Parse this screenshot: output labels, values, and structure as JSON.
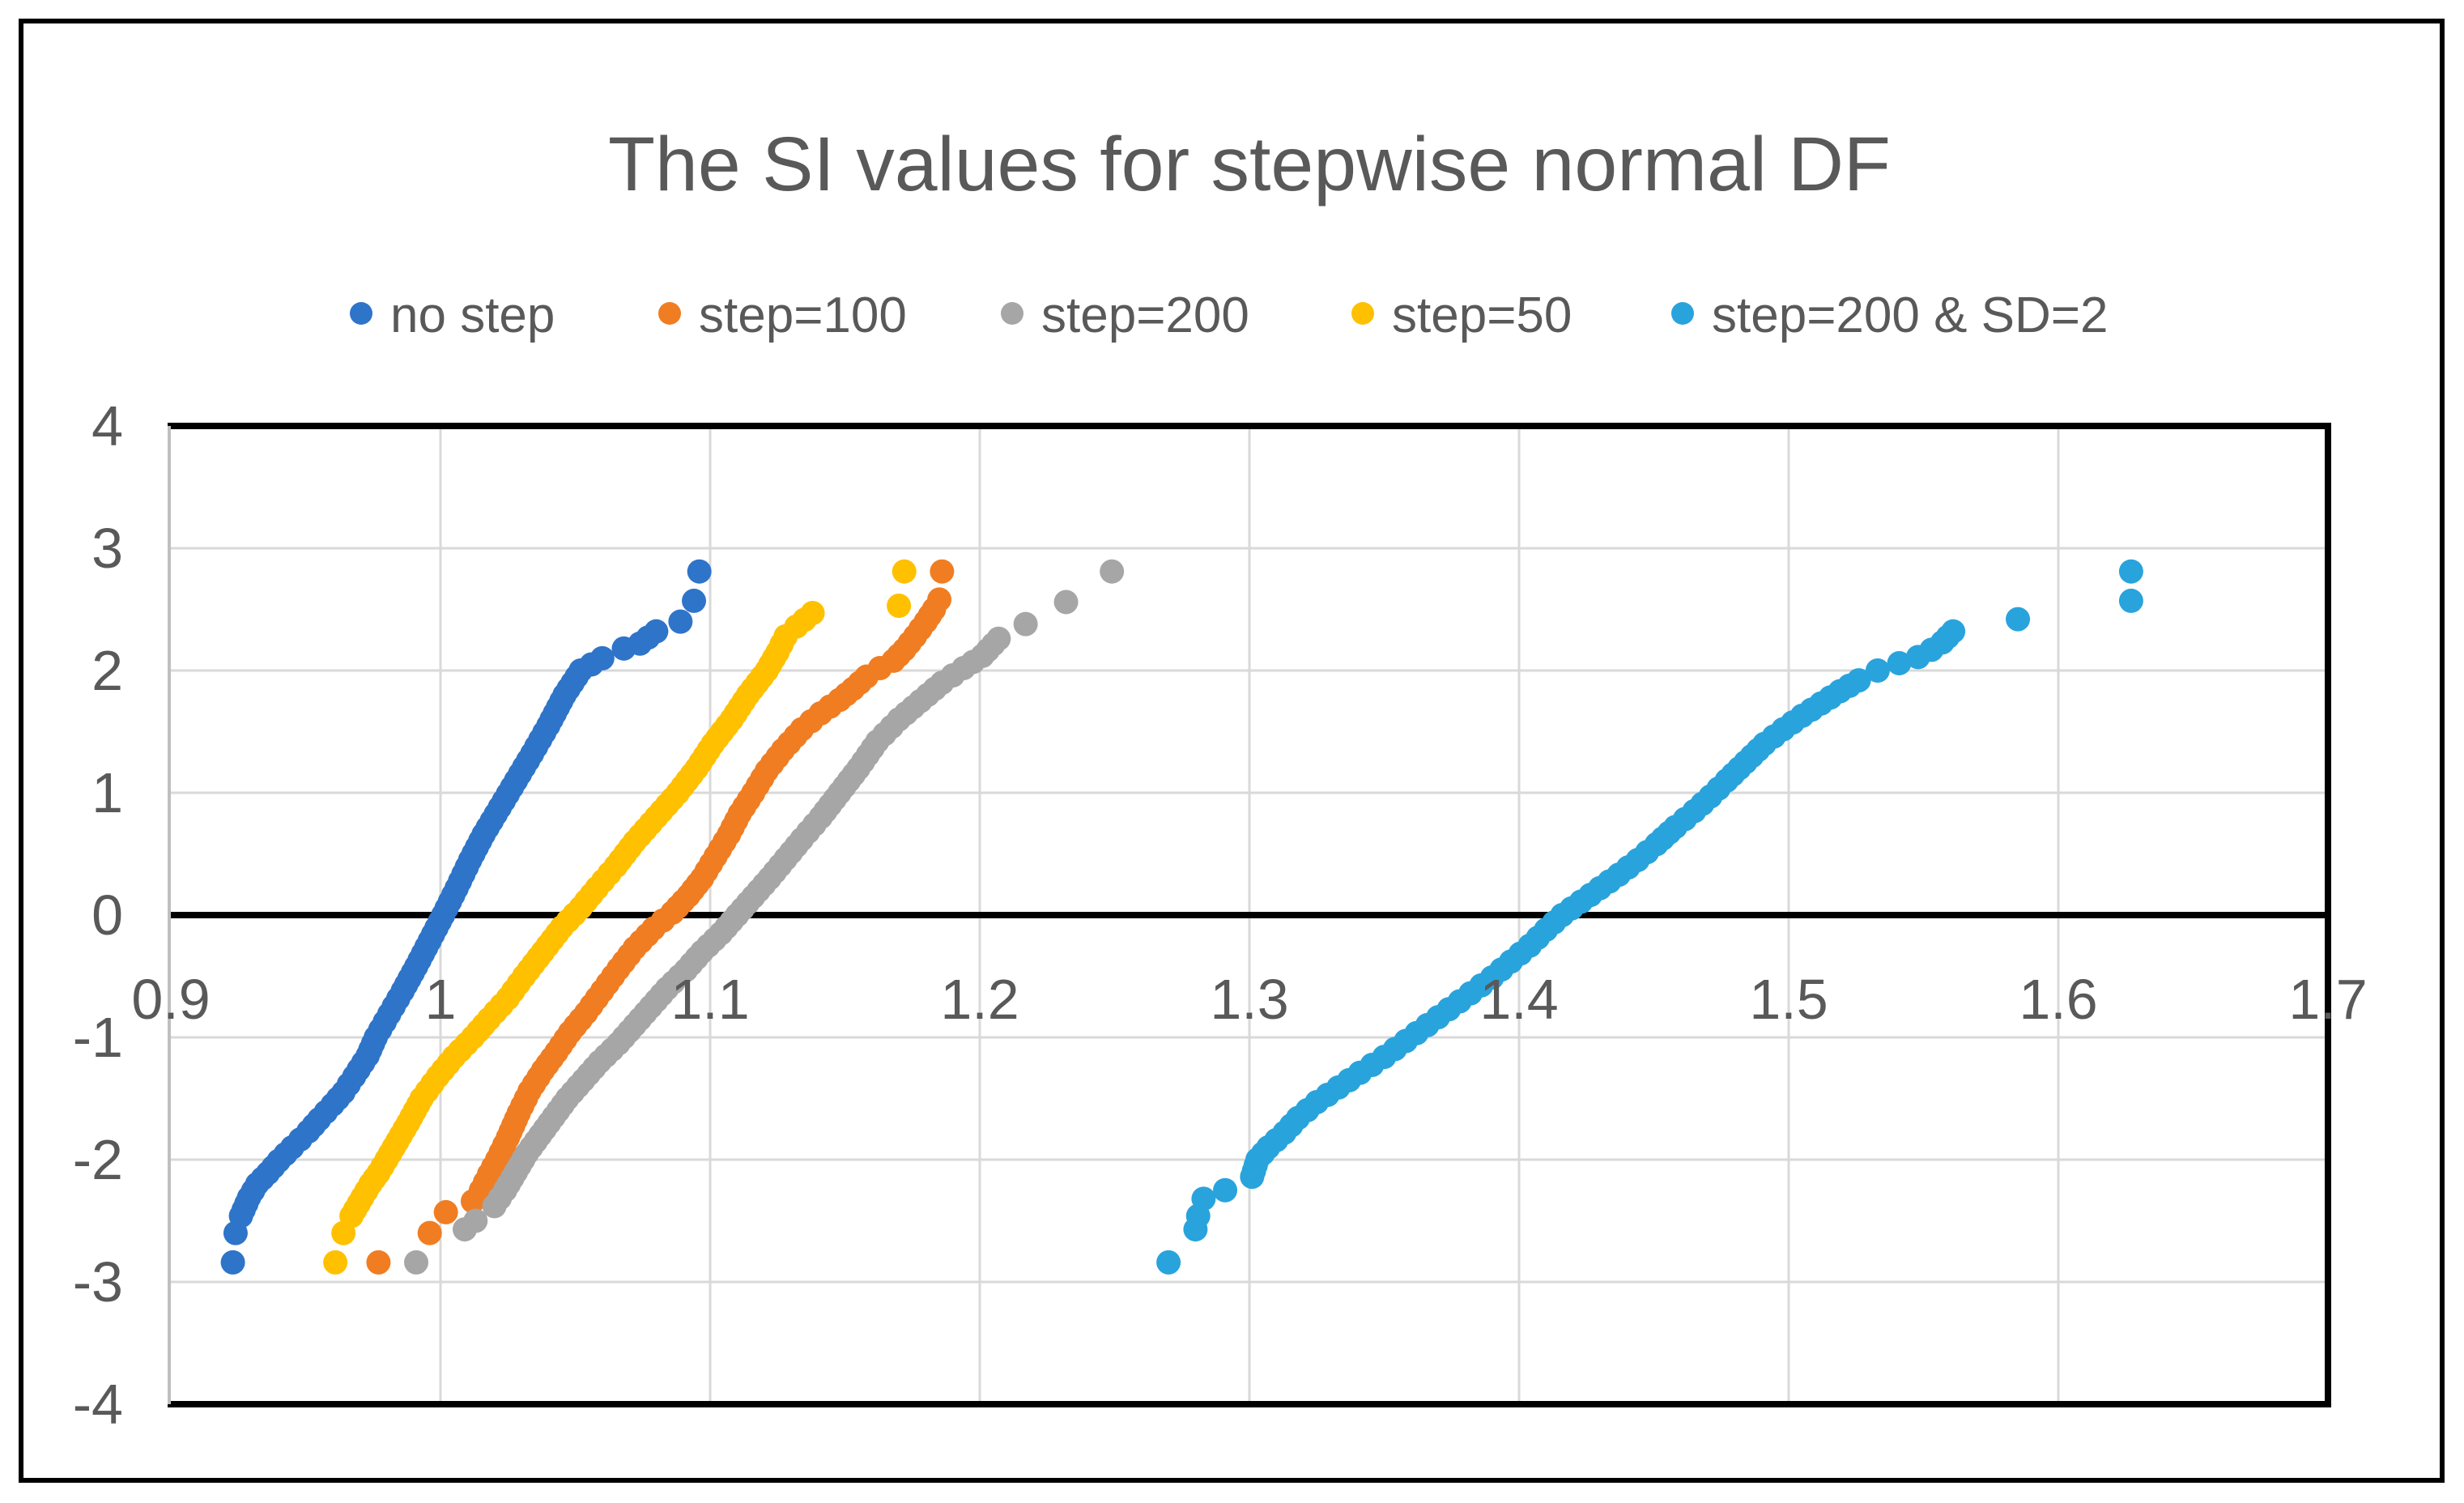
{
  "title": "The SI values for stepwise normal DF",
  "colors": {
    "text": "#595959",
    "grid": "#D9D9D9",
    "axis": "#000000",
    "left_axis_line": "#BFBFBF",
    "outer_border": "#000000",
    "background": "#FFFFFF"
  },
  "legend": {
    "items": [
      {
        "label": "no step",
        "color": "#2E74C9"
      },
      {
        "label": "step=100",
        "color": "#F07D22"
      },
      {
        "label": "step=200",
        "color": "#A6A6A6"
      },
      {
        "label": "step=50",
        "color": "#FFC000"
      },
      {
        "label": "step=200 & SD=2",
        "color": "#29A3DC"
      }
    ]
  },
  "chart_data": {
    "type": "scatter",
    "title": "The SI values for stepwise normal DF",
    "xlabel": "",
    "ylabel": "",
    "xlim": [
      0.9,
      1.7
    ],
    "ylim": [
      -4,
      4
    ],
    "grid": true,
    "legend_position": "top",
    "x_ticks": [
      "0.9",
      "1",
      "1.1",
      "1.2",
      "1.3",
      "1.4",
      "1.5",
      "1.6",
      "1.7"
    ],
    "x_tick_values": [
      0.9,
      1.0,
      1.1,
      1.2,
      1.3,
      1.4,
      1.5,
      1.6,
      1.7
    ],
    "y_ticks": [
      "4",
      "3",
      "2",
      "1",
      "0",
      "-1",
      "-2",
      "-3",
      "-4"
    ],
    "y_tick_values": [
      4,
      3,
      2,
      1,
      0,
      -1,
      -2,
      -3,
      -4
    ],
    "series": [
      {
        "name": "no step",
        "color": "#2E74C9",
        "outliers_low": [
          [
            0.923,
            -2.84
          ],
          [
            0.924,
            -2.6
          ]
        ],
        "band": [
          [
            0.926,
            -2.46
          ],
          [
            0.929,
            -2.31
          ],
          [
            0.932,
            -2.2
          ],
          [
            0.936,
            -2.11
          ],
          [
            0.94,
            -2.01
          ],
          [
            0.945,
            -1.9
          ],
          [
            0.951,
            -1.77
          ],
          [
            0.955,
            -1.67
          ],
          [
            0.96,
            -1.55
          ],
          [
            0.964,
            -1.45
          ],
          [
            0.968,
            -1.32
          ],
          [
            0.973,
            -1.15
          ],
          [
            0.976,
            -1.0
          ],
          [
            0.981,
            -0.81
          ],
          [
            0.986,
            -0.62
          ],
          [
            0.991,
            -0.42
          ],
          [
            0.996,
            -0.21
          ],
          [
            1.001,
            0.0
          ],
          [
            1.006,
            0.22
          ],
          [
            1.011,
            0.45
          ],
          [
            1.016,
            0.66
          ],
          [
            1.022,
            0.88
          ],
          [
            1.028,
            1.1
          ],
          [
            1.034,
            1.32
          ],
          [
            1.04,
            1.55
          ],
          [
            1.046,
            1.8
          ],
          [
            1.052,
            2.0
          ],
          [
            1.06,
            2.1
          ],
          [
            1.068,
            2.18
          ],
          [
            1.074,
            2.22
          ],
          [
            1.08,
            2.32
          ],
          [
            1.089,
            2.4
          ]
        ],
        "outliers_high": [
          [
            1.094,
            2.57
          ],
          [
            1.096,
            2.81
          ]
        ]
      },
      {
        "name": "step=100",
        "color": "#F07D22",
        "outliers_low": [
          [
            0.977,
            -2.84
          ],
          [
            0.996,
            -2.6
          ],
          [
            1.002,
            -2.43
          ],
          [
            1.012,
            -2.34
          ]
        ],
        "band": [
          [
            1.015,
            -2.25
          ],
          [
            1.018,
            -2.12
          ],
          [
            1.021,
            -2.0
          ],
          [
            1.025,
            -1.82
          ],
          [
            1.029,
            -1.62
          ],
          [
            1.033,
            -1.44
          ],
          [
            1.038,
            -1.27
          ],
          [
            1.043,
            -1.12
          ],
          [
            1.048,
            -0.96
          ],
          [
            1.054,
            -0.8
          ],
          [
            1.06,
            -0.62
          ],
          [
            1.066,
            -0.44
          ],
          [
            1.072,
            -0.27
          ],
          [
            1.079,
            -0.11
          ],
          [
            1.086,
            0.02
          ],
          [
            1.092,
            0.16
          ],
          [
            1.097,
            0.3
          ],
          [
            1.102,
            0.48
          ],
          [
            1.107,
            0.66
          ],
          [
            1.111,
            0.83
          ],
          [
            1.116,
            1.0
          ],
          [
            1.121,
            1.18
          ],
          [
            1.127,
            1.35
          ],
          [
            1.134,
            1.52
          ],
          [
            1.141,
            1.65
          ],
          [
            1.148,
            1.76
          ],
          [
            1.153,
            1.85
          ],
          [
            1.158,
            1.95
          ],
          [
            1.163,
            2.02
          ],
          [
            1.168,
            2.08
          ],
          [
            1.172,
            2.17
          ],
          [
            1.176,
            2.28
          ],
          [
            1.18,
            2.4
          ],
          [
            1.183,
            2.5
          ],
          [
            1.185,
            2.58
          ]
        ],
        "outliers_high": [
          [
            1.186,
            2.81
          ]
        ]
      },
      {
        "name": "step=200",
        "color": "#A6A6A6",
        "outliers_low": [
          [
            0.991,
            -2.84
          ],
          [
            1.009,
            -2.57
          ],
          [
            1.013,
            -2.5
          ]
        ],
        "band": [
          [
            1.02,
            -2.38
          ],
          [
            1.024,
            -2.25
          ],
          [
            1.028,
            -2.1
          ],
          [
            1.032,
            -1.95
          ],
          [
            1.037,
            -1.8
          ],
          [
            1.042,
            -1.65
          ],
          [
            1.047,
            -1.5
          ],
          [
            1.053,
            -1.35
          ],
          [
            1.059,
            -1.2
          ],
          [
            1.066,
            -1.05
          ],
          [
            1.072,
            -0.9
          ],
          [
            1.078,
            -0.75
          ],
          [
            1.084,
            -0.6
          ],
          [
            1.091,
            -0.45
          ],
          [
            1.097,
            -0.3
          ],
          [
            1.104,
            -0.15
          ],
          [
            1.11,
            0.0
          ],
          [
            1.116,
            0.15
          ],
          [
            1.122,
            0.3
          ],
          [
            1.128,
            0.46
          ],
          [
            1.134,
            0.62
          ],
          [
            1.141,
            0.8
          ],
          [
            1.148,
            1.0
          ],
          [
            1.155,
            1.2
          ],
          [
            1.162,
            1.42
          ],
          [
            1.17,
            1.6
          ],
          [
            1.178,
            1.75
          ],
          [
            1.186,
            1.9
          ],
          [
            1.194,
            2.02
          ],
          [
            1.201,
            2.12
          ],
          [
            1.207,
            2.26
          ]
        ],
        "outliers_high": [
          [
            1.217,
            2.38
          ],
          [
            1.232,
            2.56
          ],
          [
            1.249,
            2.81
          ]
        ]
      },
      {
        "name": "step=50",
        "color": "#FFC000",
        "outliers_low": [
          [
            0.961,
            -2.84
          ],
          [
            0.964,
            -2.6
          ]
        ],
        "band": [
          [
            0.967,
            -2.46
          ],
          [
            0.971,
            -2.31
          ],
          [
            0.974,
            -2.2
          ],
          [
            0.977,
            -2.11
          ],
          [
            0.98,
            -2.0
          ],
          [
            0.984,
            -1.85
          ],
          [
            0.988,
            -1.7
          ],
          [
            0.993,
            -1.5
          ],
          [
            0.999,
            -1.32
          ],
          [
            1.005,
            -1.16
          ],
          [
            1.012,
            -1.0
          ],
          [
            1.018,
            -0.85
          ],
          [
            1.025,
            -0.68
          ],
          [
            1.031,
            -0.5
          ],
          [
            1.038,
            -0.3
          ],
          [
            1.045,
            -0.1
          ],
          [
            1.052,
            0.06
          ],
          [
            1.058,
            0.22
          ],
          [
            1.065,
            0.4
          ],
          [
            1.072,
            0.6
          ],
          [
            1.08,
            0.8
          ],
          [
            1.088,
            1.0
          ],
          [
            1.095,
            1.2
          ],
          [
            1.101,
            1.4
          ],
          [
            1.108,
            1.6
          ],
          [
            1.114,
            1.8
          ],
          [
            1.121,
            2.0
          ],
          [
            1.125,
            2.15
          ],
          [
            1.128,
            2.28
          ],
          [
            1.132,
            2.36
          ],
          [
            1.138,
            2.47
          ]
        ],
        "outliers_high": [
          [
            1.17,
            2.53
          ],
          [
            1.172,
            2.81
          ]
        ]
      },
      {
        "name": "step=200 & SD=2",
        "color": "#29A3DC",
        "outliers_low": [
          [
            1.27,
            -2.84
          ],
          [
            1.28,
            -2.57
          ],
          [
            1.281,
            -2.46
          ],
          [
            1.283,
            -2.32
          ],
          [
            1.291,
            -2.25
          ]
        ],
        "band": [
          [
            1.301,
            -2.14
          ],
          [
            1.303,
            -2.0
          ],
          [
            1.307,
            -1.9
          ],
          [
            1.313,
            -1.78
          ],
          [
            1.318,
            -1.66
          ],
          [
            1.325,
            -1.53
          ],
          [
            1.333,
            -1.41
          ],
          [
            1.341,
            -1.29
          ],
          [
            1.35,
            -1.16
          ],
          [
            1.358,
            -1.03
          ],
          [
            1.366,
            -0.9
          ],
          [
            1.374,
            -0.77
          ],
          [
            1.382,
            -0.64
          ],
          [
            1.39,
            -0.51
          ],
          [
            1.397,
            -0.38
          ],
          [
            1.404,
            -0.25
          ],
          [
            1.41,
            -0.12
          ],
          [
            1.416,
            0.0
          ],
          [
            1.423,
            0.11
          ],
          [
            1.43,
            0.22
          ],
          [
            1.437,
            0.33
          ],
          [
            1.444,
            0.45
          ],
          [
            1.451,
            0.58
          ],
          [
            1.458,
            0.72
          ],
          [
            1.465,
            0.85
          ],
          [
            1.471,
            0.97
          ],
          [
            1.477,
            1.1
          ],
          [
            1.484,
            1.25
          ],
          [
            1.491,
            1.4
          ],
          [
            1.498,
            1.52
          ],
          [
            1.505,
            1.63
          ],
          [
            1.512,
            1.73
          ],
          [
            1.519,
            1.83
          ],
          [
            1.526,
            1.92
          ],
          [
            1.533,
            2.0
          ],
          [
            1.541,
            2.06
          ],
          [
            1.548,
            2.11
          ],
          [
            1.553,
            2.17
          ],
          [
            1.557,
            2.23
          ],
          [
            1.561,
            2.32
          ]
        ],
        "outliers_high": [
          [
            1.585,
            2.42
          ],
          [
            1.627,
            2.57
          ],
          [
            1.627,
            2.81
          ]
        ]
      }
    ]
  }
}
